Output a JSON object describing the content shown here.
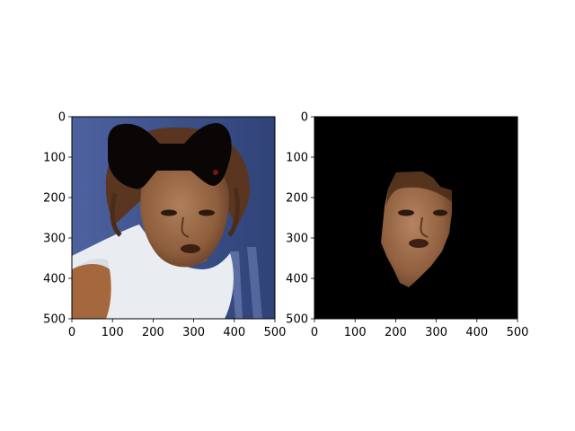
{
  "chart_data": [
    {
      "type": "image",
      "image_content": "photo of a tennis player's face, with a black bow-shaped mask covering the top of the head",
      "xlim": [
        0,
        500
      ],
      "ylim": [
        500,
        0
      ],
      "xticks": [
        0,
        100,
        200,
        300,
        400,
        500
      ],
      "yticks": [
        0,
        100,
        200,
        300,
        400,
        500
      ],
      "xtick_labels": [
        "0",
        "100",
        "200",
        "300",
        "400",
        "500"
      ],
      "ytick_labels": [
        "0",
        "100",
        "200",
        "300",
        "400",
        "500"
      ]
    },
    {
      "type": "image",
      "image_content": "segmented face of the same player on a black background",
      "xlim": [
        0,
        500
      ],
      "ylim": [
        500,
        0
      ],
      "xticks": [
        0,
        100,
        200,
        300,
        400,
        500
      ],
      "yticks": [
        0,
        100,
        200,
        300,
        400,
        500
      ],
      "xtick_labels": [
        "0",
        "100",
        "200",
        "300",
        "400",
        "500"
      ],
      "ytick_labels": [
        "0",
        "100",
        "200",
        "300",
        "400",
        "500"
      ]
    }
  ],
  "colors": {
    "background_left": "#3a4f86",
    "shirt": "#eceff3",
    "skin": "#9a6a4a",
    "hair": "#4a2c18",
    "mask": "#0a0606",
    "background_right": "#000000"
  }
}
